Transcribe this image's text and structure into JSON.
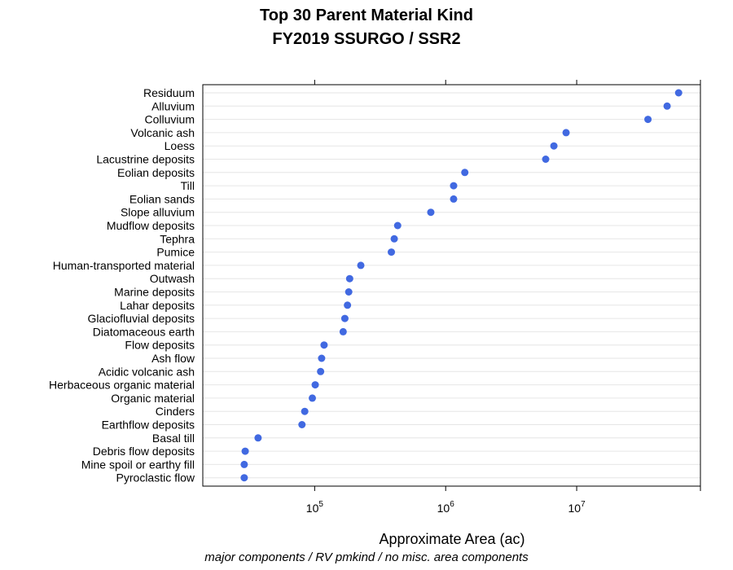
{
  "title": "Top 30 Parent Material Kind",
  "subtitle": "FY2019 SSURGO / SSR2",
  "caption": "major components / RV pmkind / no misc. area components",
  "colors": {
    "point": "#4169E1",
    "gridline": "#e6e6e6",
    "frame": "#000000"
  },
  "chart_data": {
    "type": "scatter",
    "title": "Top 30 Parent Material Kind",
    "subtitle": "FY2019 SSURGO / SSR2",
    "xlabel": "Approximate Area (ac)",
    "ylabel": "",
    "x_scale": "log10",
    "xlim": [
      14000,
      88000000
    ],
    "x_ticks": [
      {
        "value": 100000,
        "base": "10",
        "exp": "5"
      },
      {
        "value": 1000000,
        "base": "10",
        "exp": "6"
      },
      {
        "value": 10000000,
        "base": "10",
        "exp": "7"
      }
    ],
    "grid": "horizontal",
    "categories": [
      "Residuum",
      "Alluvium",
      "Colluvium",
      "Volcanic ash",
      "Loess",
      "Lacustrine deposits",
      "Eolian deposits",
      "Till",
      "Eolian sands",
      "Slope alluvium",
      "Mudflow deposits",
      "Tephra",
      "Pumice",
      "Human-transported material",
      "Outwash",
      "Marine deposits",
      "Lahar deposits",
      "Glaciofluvial deposits",
      "Diatomaceous earth",
      "Flow deposits",
      "Ash flow",
      "Acidic volcanic ash",
      "Herbaceous organic material",
      "Organic material",
      "Cinders",
      "Earthflow deposits",
      "Basal till",
      "Debris flow deposits",
      "Mine spoil or earthy fill",
      "Pyroclastic flow"
    ],
    "values": [
      60000000,
      49000000,
      35000000,
      8300000,
      6700000,
      5800000,
      1400000,
      1150000,
      1150000,
      770000,
      430000,
      405000,
      385000,
      225000,
      185000,
      182000,
      178000,
      170000,
      165000,
      118000,
      113000,
      111000,
      101000,
      96000,
      84000,
      80000,
      37000,
      29500,
      29000,
      29000
    ]
  }
}
